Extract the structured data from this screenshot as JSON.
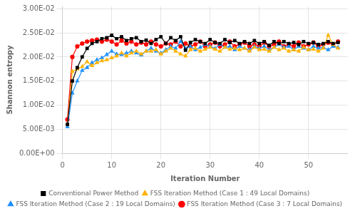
{
  "chart_data": {
    "type": "line",
    "xlabel": "Iteration Number",
    "ylabel": "Shannon entropy",
    "xlim": [
      0,
      58
    ],
    "ylim": [
      0.0,
      0.0305
    ],
    "xticks": [
      0,
      10,
      20,
      30,
      40,
      50
    ],
    "yticks": [
      {
        "value": 0.0,
        "label": "0.00E+00"
      },
      {
        "value": 0.005,
        "label": "5.00E-03"
      },
      {
        "value": 0.01,
        "label": "1.00E-02"
      },
      {
        "value": 0.015,
        "label": "1.50E-02"
      },
      {
        "value": 0.02,
        "label": "2.00E-02"
      },
      {
        "value": 0.025,
        "label": "2.50E-02"
      },
      {
        "value": 0.03,
        "label": "3.00E-02"
      }
    ],
    "grid": true,
    "legend": "bottom",
    "x": [
      1,
      2,
      3,
      4,
      5,
      6,
      7,
      8,
      9,
      10,
      11,
      12,
      13,
      14,
      15,
      16,
      17,
      18,
      19,
      20,
      21,
      22,
      23,
      24,
      25,
      26,
      27,
      28,
      29,
      30,
      31,
      32,
      33,
      34,
      35,
      36,
      37,
      38,
      39,
      40,
      41,
      42,
      43,
      44,
      45,
      46,
      47,
      48,
      49,
      50,
      51,
      52,
      53,
      54,
      55,
      56
    ],
    "series": [
      {
        "name": "Conventional Power Method",
        "color": "black",
        "marker": "square",
        "values": [
          0.006,
          0.015,
          0.0178,
          0.02,
          0.0218,
          0.0228,
          0.0232,
          0.0238,
          0.024,
          0.0245,
          0.0238,
          0.0242,
          0.0234,
          0.0238,
          0.024,
          0.0232,
          0.0235,
          0.0228,
          0.0236,
          0.0242,
          0.0228,
          0.024,
          0.0234,
          0.0242,
          0.0214,
          0.023,
          0.0236,
          0.0232,
          0.0228,
          0.0236,
          0.023,
          0.0228,
          0.0236,
          0.023,
          0.0234,
          0.0228,
          0.0232,
          0.0228,
          0.0234,
          0.0228,
          0.0232,
          0.0224,
          0.0232,
          0.0228,
          0.0232,
          0.0228,
          0.023,
          0.0226,
          0.0232,
          0.0228,
          0.023,
          0.0226,
          0.0228,
          0.0232,
          0.0228,
          0.023
        ]
      },
      {
        "name": "FSS Iteration Method (Case 1 : 49 Local Domains)",
        "color": "#FFB300",
        "marker": "triangle",
        "values": [
          0.006,
          0.017,
          0.0175,
          0.018,
          0.019,
          0.0182,
          0.0188,
          0.0192,
          0.0194,
          0.0198,
          0.0202,
          0.0208,
          0.0202,
          0.0208,
          0.0212,
          0.0206,
          0.0212,
          0.0212,
          0.0215,
          0.0206,
          0.0212,
          0.0218,
          0.0212,
          0.0206,
          0.0202,
          0.0215,
          0.0218,
          0.0212,
          0.0216,
          0.022,
          0.0216,
          0.0212,
          0.022,
          0.0216,
          0.0218,
          0.0215,
          0.0218,
          0.0212,
          0.022,
          0.0215,
          0.0216,
          0.0212,
          0.022,
          0.0215,
          0.0218,
          0.0212,
          0.0215,
          0.0212,
          0.022,
          0.0215,
          0.0216,
          0.0212,
          0.0218,
          0.0245,
          0.0226,
          0.0218
        ]
      },
      {
        "name": "FSS Iteration Method (Case 2 : 19 Local Domains)",
        "color": "#1E90FF",
        "marker": "triangle",
        "values": [
          0.0055,
          0.0125,
          0.015,
          0.0172,
          0.0178,
          0.0188,
          0.0194,
          0.0198,
          0.0205,
          0.0212,
          0.0206,
          0.0205,
          0.0208,
          0.0212,
          0.0208,
          0.0204,
          0.0212,
          0.0218,
          0.0212,
          0.0208,
          0.0215,
          0.0222,
          0.0218,
          0.0232,
          0.0218,
          0.0222,
          0.0215,
          0.022,
          0.0226,
          0.0222,
          0.0218,
          0.0226,
          0.022,
          0.0222,
          0.0215,
          0.0222,
          0.0218,
          0.0215,
          0.0222,
          0.0218,
          0.0222,
          0.0215,
          0.022,
          0.0226,
          0.022,
          0.0222,
          0.0215,
          0.0222,
          0.0218,
          0.0215,
          0.0222,
          0.0218,
          0.022,
          0.0215,
          0.0222,
          0.022
        ]
      },
      {
        "name": "FSS Iteration Method (Case 3 : 7 Local Domains)",
        "color": "red",
        "marker": "circle",
        "values": [
          0.007,
          0.02,
          0.0222,
          0.0228,
          0.0232,
          0.0234,
          0.0236,
          0.0232,
          0.0236,
          0.0232,
          0.0226,
          0.0234,
          0.0228,
          0.0232,
          0.0226,
          0.023,
          0.0226,
          0.0232,
          0.0226,
          0.0222,
          0.0228,
          0.0226,
          0.0232,
          0.0222,
          0.0228,
          0.0222,
          0.0226,
          0.0232,
          0.0222,
          0.0226,
          0.023,
          0.0222,
          0.0226,
          0.0232,
          0.0222,
          0.0226,
          0.023,
          0.0222,
          0.0226,
          0.0222,
          0.023,
          0.0222,
          0.0226,
          0.0232,
          0.0222,
          0.0226,
          0.0222,
          0.023,
          0.0222,
          0.0226,
          0.023,
          0.0222,
          0.0226,
          0.023,
          0.0226,
          0.0232
        ]
      }
    ]
  }
}
